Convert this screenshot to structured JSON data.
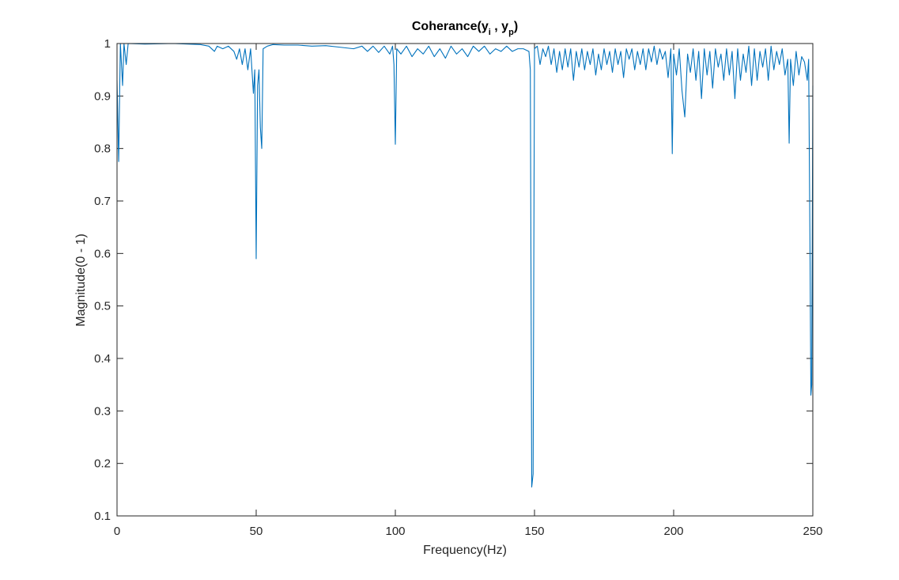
{
  "chart_data": {
    "type": "line",
    "title": [
      "Coherance(y",
      "i",
      " , y",
      "p",
      ")"
    ],
    "xlabel": "Frequency(Hz)",
    "ylabel": "Magnitude(0 - 1)",
    "xlim": [
      0,
      250
    ],
    "ylim": [
      0.1,
      1
    ],
    "xticks": [
      0,
      50,
      100,
      150,
      200,
      250
    ],
    "yticks": [
      0.1,
      0.2,
      0.3,
      0.4,
      0.5,
      0.6,
      0.7,
      0.8,
      0.9,
      1
    ],
    "grid": false,
    "series": [
      {
        "color": "#0072bd",
        "x": [
          0,
          0.6,
          1.2,
          2,
          2.5,
          3.3,
          4,
          10,
          20,
          30,
          33,
          35,
          36,
          38,
          40,
          42,
          43,
          44,
          45,
          46,
          47,
          48,
          49,
          49.5,
          50,
          50.5,
          51,
          51.5,
          52,
          52.5,
          54,
          56,
          60,
          65,
          70,
          75,
          80,
          85,
          88,
          90,
          92,
          94,
          96,
          98,
          99,
          99.5,
          100,
          100.5,
          102,
          104,
          106,
          108,
          110,
          112,
          114,
          116,
          118,
          120,
          122,
          124,
          126,
          128,
          130,
          132,
          134,
          136,
          138,
          140,
          142,
          144,
          146,
          148,
          148.5,
          149,
          149.5,
          150,
          151,
          152,
          153,
          154,
          155,
          156,
          157,
          158,
          159,
          160,
          161,
          162,
          163,
          164,
          165,
          166,
          167,
          168,
          169,
          170,
          171,
          172,
          173,
          174,
          175,
          176,
          177,
          178,
          179,
          180,
          181,
          182,
          183,
          184,
          185,
          186,
          187,
          188,
          189,
          190,
          191,
          192,
          193,
          194,
          195,
          196,
          197,
          198,
          199,
          199.5,
          200,
          201,
          202,
          203,
          204,
          205,
          206,
          207,
          208,
          209,
          210,
          211,
          212,
          213,
          214,
          215,
          216,
          217,
          218,
          219,
          220,
          221,
          222,
          223,
          224,
          225,
          226,
          227,
          228,
          229,
          230,
          231,
          232,
          233,
          234,
          235,
          236,
          237,
          238,
          239,
          240,
          241,
          241.5,
          242,
          243,
          244,
          245,
          246,
          247,
          248,
          248.5,
          249,
          249.3,
          249.6,
          250
        ],
        "values": [
          0.93,
          0.775,
          1,
          0.92,
          1,
          0.96,
          1,
          0.999,
          1,
          0.998,
          0.995,
          0.985,
          0.995,
          0.99,
          0.995,
          0.985,
          0.97,
          0.99,
          0.96,
          0.99,
          0.95,
          0.99,
          0.905,
          0.95,
          0.59,
          0.92,
          0.95,
          0.84,
          0.8,
          0.99,
          0.995,
          0.998,
          0.997,
          0.997,
          0.995,
          0.996,
          0.993,
          0.99,
          0.995,
          0.985,
          0.995,
          0.983,
          0.995,
          0.98,
          0.995,
          0.96,
          0.808,
          0.99,
          0.98,
          0.995,
          0.975,
          0.99,
          0.98,
          0.995,
          0.975,
          0.99,
          0.972,
          0.995,
          0.98,
          0.99,
          0.975,
          0.995,
          0.985,
          0.995,
          0.98,
          0.99,
          0.985,
          0.995,
          0.985,
          0.99,
          0.99,
          0.985,
          0.95,
          0.155,
          0.18,
          0.99,
          0.995,
          0.96,
          0.99,
          0.975,
          0.995,
          0.96,
          0.99,
          0.945,
          0.985,
          0.95,
          0.99,
          0.955,
          0.99,
          0.93,
          0.985,
          0.955,
          0.99,
          0.95,
          0.985,
          0.96,
          0.99,
          0.94,
          0.98,
          0.95,
          0.99,
          0.96,
          0.985,
          0.945,
          0.99,
          0.96,
          0.985,
          0.935,
          0.99,
          0.97,
          0.99,
          0.95,
          0.985,
          0.96,
          0.99,
          0.95,
          0.99,
          0.965,
          0.995,
          0.96,
          0.99,
          0.97,
          0.985,
          0.935,
          0.99,
          0.79,
          0.98,
          0.94,
          0.99,
          0.91,
          0.86,
          0.98,
          0.945,
          0.99,
          0.93,
          0.985,
          0.895,
          0.99,
          0.94,
          0.985,
          0.915,
          0.99,
          0.955,
          0.98,
          0.93,
          0.99,
          0.94,
          0.985,
          0.895,
          0.99,
          0.93,
          0.98,
          0.945,
          0.995,
          0.92,
          0.99,
          0.93,
          0.985,
          0.955,
          0.99,
          0.93,
          0.995,
          0.95,
          0.985,
          0.96,
          0.99,
          0.94,
          0.97,
          0.81,
          0.97,
          0.92,
          0.985,
          0.94,
          0.975,
          0.965,
          0.93,
          0.97,
          0.6,
          0.33,
          0.35,
          0.92
        ]
      }
    ]
  }
}
